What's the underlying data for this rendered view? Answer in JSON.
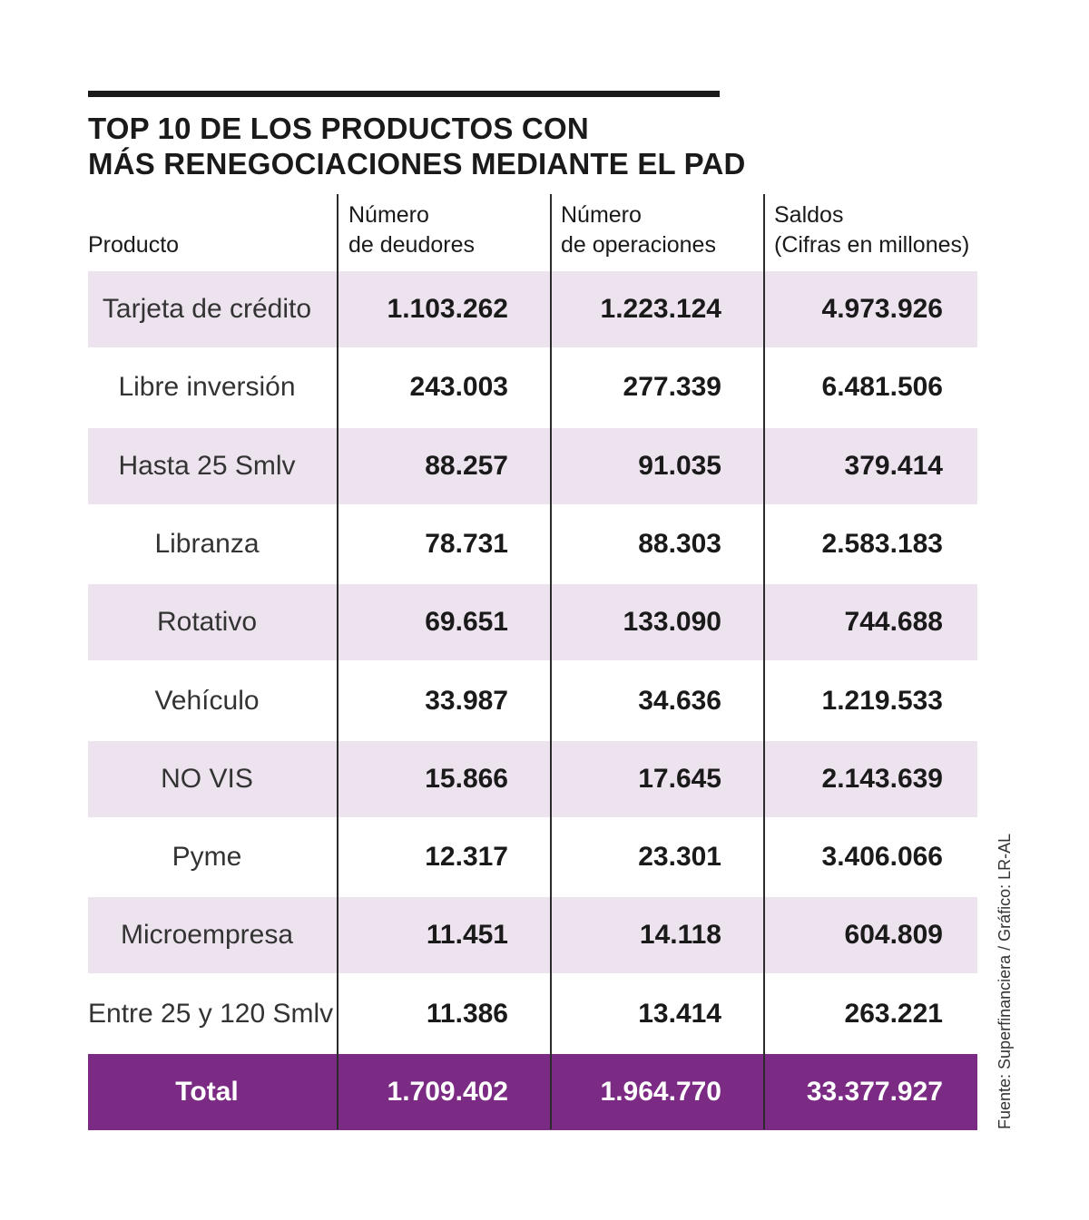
{
  "chart_data": {
    "type": "table",
    "title_lines": [
      "TOP 10 DE LOS PRODUCTOS CON",
      "MÁS RENEGOCIACIONES MEDIANTE EL PAD"
    ],
    "columns": [
      {
        "lines": [
          "Producto"
        ]
      },
      {
        "lines": [
          "Número",
          "de deudores"
        ]
      },
      {
        "lines": [
          "Número",
          "de operaciones"
        ]
      },
      {
        "lines": [
          "Saldos",
          "(Cifras en millones)"
        ]
      }
    ],
    "rows": [
      {
        "producto": "Tarjeta de crédito",
        "deudores": "1.103.262",
        "operaciones": "1.223.124",
        "saldos": "4.973.926"
      },
      {
        "producto": "Libre inversión",
        "deudores": "243.003",
        "operaciones": "277.339",
        "saldos": "6.481.506"
      },
      {
        "producto": "Hasta 25 Smlv",
        "deudores": "88.257",
        "operaciones": "91.035",
        "saldos": "379.414"
      },
      {
        "producto": "Libranza",
        "deudores": "78.731",
        "operaciones": "88.303",
        "saldos": "2.583.183"
      },
      {
        "producto": "Rotativo",
        "deudores": "69.651",
        "operaciones": "133.090",
        "saldos": "744.688"
      },
      {
        "producto": "Vehículo",
        "deudores": "33.987",
        "operaciones": "34.636",
        "saldos": "1.219.533"
      },
      {
        "producto": "NO VIS",
        "deudores": "15.866",
        "operaciones": "17.645",
        "saldos": "2.143.639"
      },
      {
        "producto": "Pyme",
        "deudores": "12.317",
        "operaciones": "23.301",
        "saldos": "3.406.066"
      },
      {
        "producto": "Microempresa",
        "deudores": "11.451",
        "operaciones": "14.118",
        "saldos": "604.809"
      },
      {
        "producto": "Entre 25 y 120 Smlv",
        "deudores": "11.386",
        "operaciones": "13.414",
        "saldos": "263.221"
      }
    ],
    "total": {
      "producto": "Total",
      "deudores": "1.709.402",
      "operaciones": "1.964.770",
      "saldos": "33.377.927"
    },
    "source": "Fuente: Superfinanciera / Gráfico: LR-AL"
  },
  "colors": {
    "shaded_row": "#ede3ef",
    "total_row": "#7b2b84",
    "rule": "#1a1a1a"
  }
}
